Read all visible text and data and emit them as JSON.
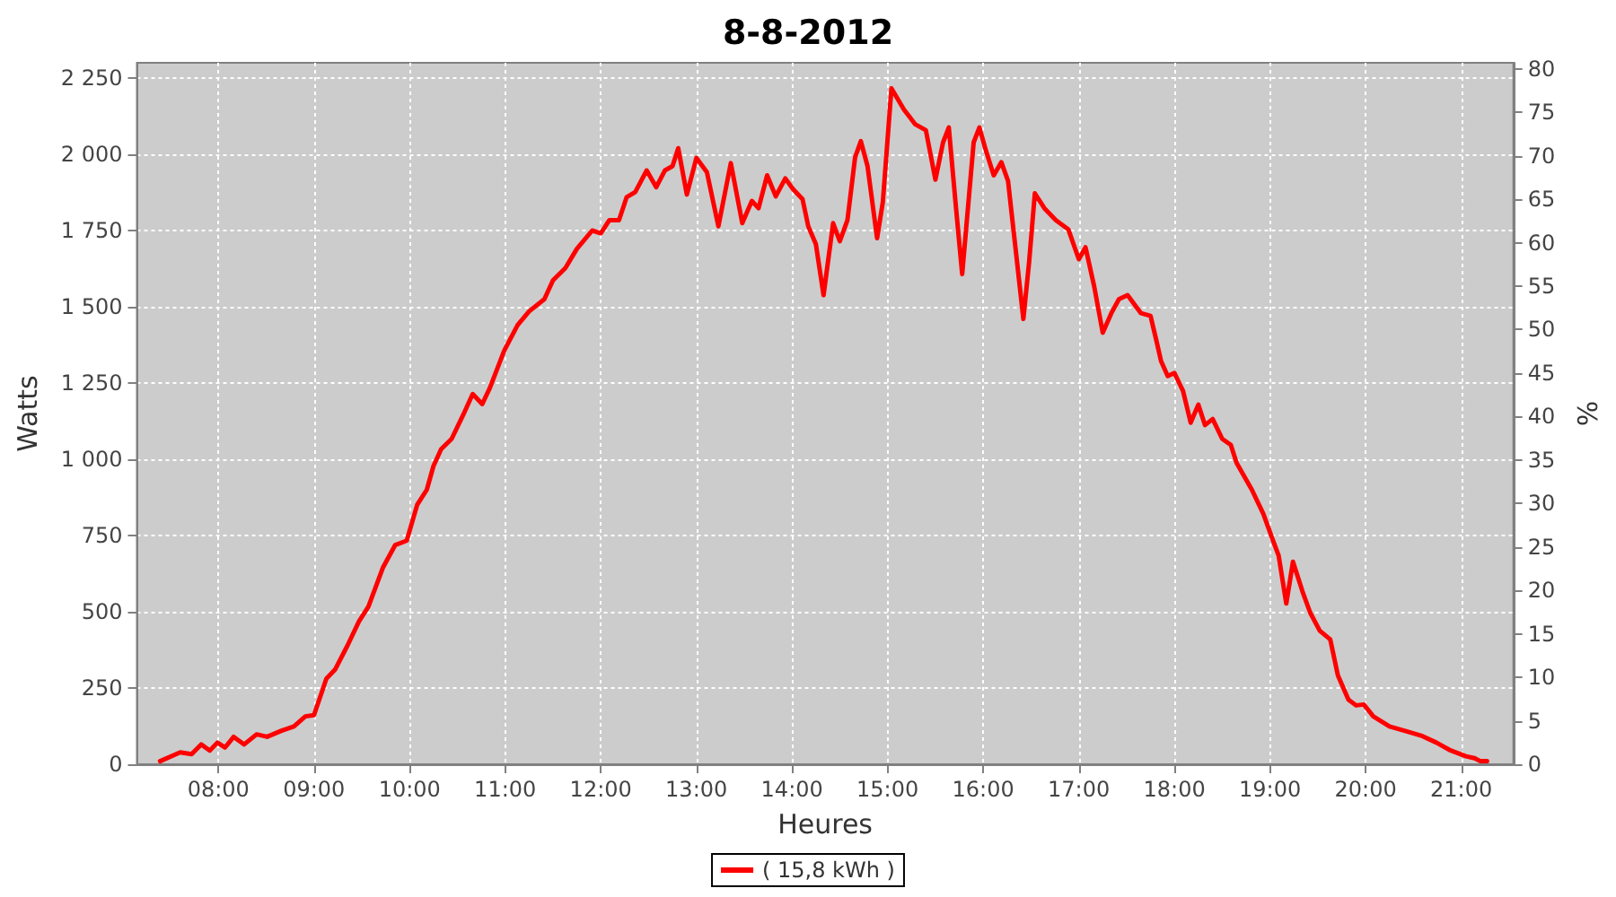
{
  "chart_data": {
    "type": "line",
    "title": "8-8-2012",
    "xlabel": "Heures",
    "ylabel": "Watts",
    "y2label": "%",
    "x": [
      7.39,
      7.6,
      7.72,
      7.82,
      7.91,
      7.99,
      8.07,
      8.16,
      8.27,
      8.4,
      8.51,
      8.66,
      8.79,
      8.91,
      9.0,
      9.13,
      9.22,
      9.35,
      9.47,
      9.57,
      9.72,
      9.85,
      9.97,
      10.08,
      10.18,
      10.25,
      10.33,
      10.44,
      10.56,
      10.66,
      10.76,
      10.84,
      10.99,
      11.13,
      11.25,
      11.41,
      11.5,
      11.63,
      11.75,
      11.91,
      12.0,
      12.09,
      12.19,
      12.27,
      12.36,
      12.48,
      12.58,
      12.67,
      12.75,
      12.81,
      12.9,
      13.0,
      13.11,
      13.23,
      13.36,
      13.48,
      13.58,
      13.65,
      13.74,
      13.83,
      13.93,
      14.01,
      14.11,
      14.17,
      14.25,
      14.33,
      14.43,
      14.5,
      14.58,
      14.66,
      14.72,
      14.79,
      14.89,
      14.95,
      15.04,
      15.17,
      15.29,
      15.4,
      15.5,
      15.58,
      15.64,
      15.71,
      15.78,
      15.84,
      15.9,
      15.96,
      16.03,
      16.11,
      16.19,
      16.26,
      16.34,
      16.42,
      16.48,
      16.54,
      16.64,
      16.76,
      16.89,
      17.0,
      17.07,
      17.16,
      17.25,
      17.34,
      17.42,
      17.51,
      17.65,
      17.75,
      17.81,
      17.86,
      17.93,
      18.0,
      18.09,
      18.17,
      18.25,
      18.32,
      18.4,
      18.5,
      18.59,
      18.65,
      18.81,
      18.93,
      19.02,
      19.09,
      19.17,
      19.24,
      19.34,
      19.42,
      19.52,
      19.63,
      19.71,
      19.82,
      19.9,
      19.98,
      20.08,
      20.25,
      20.43,
      20.58,
      20.74,
      20.89,
      21.05,
      21.14,
      21.2,
      21.27
    ],
    "series": [
      {
        "name": "( 15,8 kWh )",
        "color": "#ff0000",
        "values": [
          10,
          39,
          33,
          65,
          45,
          71,
          55,
          90,
          65,
          98,
          90,
          110,
          124,
          157,
          161,
          281,
          310,
          389,
          468,
          517,
          644,
          719,
          733,
          851,
          900,
          978,
          1033,
          1067,
          1145,
          1214,
          1181,
          1234,
          1356,
          1440,
          1485,
          1525,
          1587,
          1627,
          1690,
          1750,
          1741,
          1784,
          1784,
          1859,
          1876,
          1947,
          1892,
          1947,
          1961,
          2020,
          1868,
          1988,
          1941,
          1764,
          1971,
          1774,
          1847,
          1823,
          1931,
          1862,
          1921,
          1886,
          1853,
          1764,
          1705,
          1538,
          1774,
          1715,
          1784,
          1990,
          2043,
          1961,
          1725,
          1843,
          2216,
          2147,
          2098,
          2079,
          1917,
          2039,
          2088,
          1843,
          1607,
          1823,
          2039,
          2088,
          2010,
          1931,
          1974,
          1912,
          1686,
          1460,
          1646,
          1872,
          1823,
          1784,
          1754,
          1656,
          1695,
          1568,
          1415,
          1479,
          1525,
          1538,
          1479,
          1470,
          1391,
          1322,
          1273,
          1283,
          1224,
          1120,
          1179,
          1112,
          1132,
          1067,
          1047,
          988,
          900,
          821,
          743,
          684,
          527,
          664,
          566,
          497,
          438,
          409,
          291,
          212,
          193,
          196,
          157,
          124,
          108,
          94,
          71,
          45,
          26,
          20,
          10,
          10
        ]
      }
    ],
    "xlim": [
      7.148,
      21.545
    ],
    "ylim": [
      0,
      2300
    ],
    "y2lim": [
      0,
      80.7
    ],
    "xticks": [
      {
        "value": 8,
        "label": "08:00"
      },
      {
        "value": 9,
        "label": "09:00"
      },
      {
        "value": 10,
        "label": "10:00"
      },
      {
        "value": 11,
        "label": "11:00"
      },
      {
        "value": 12,
        "label": "12:00"
      },
      {
        "value": 13,
        "label": "13:00"
      },
      {
        "value": 14,
        "label": "14:00"
      },
      {
        "value": 15,
        "label": "15:00"
      },
      {
        "value": 16,
        "label": "16:00"
      },
      {
        "value": 17,
        "label": "17:00"
      },
      {
        "value": 18,
        "label": "18:00"
      },
      {
        "value": 19,
        "label": "19:00"
      },
      {
        "value": 20,
        "label": "20:00"
      },
      {
        "value": 21,
        "label": "21:00"
      }
    ],
    "yticks": [
      0,
      250,
      500,
      750,
      {
        "value": 1000,
        "label": "1 000"
      },
      {
        "value": 1250,
        "label": "1 250"
      },
      {
        "value": 1500,
        "label": "1 500"
      },
      {
        "value": 1750,
        "label": "1 750"
      },
      {
        "value": 2000,
        "label": "2 000"
      },
      {
        "value": 2250,
        "label": "2 250"
      }
    ],
    "y2ticks": [
      0,
      5,
      10,
      15,
      20,
      25,
      30,
      35,
      40,
      45,
      50,
      55,
      60,
      65,
      70,
      75,
      80
    ],
    "grid": true,
    "legend": "bottom",
    "marker": "none",
    "line_style": "solid"
  }
}
